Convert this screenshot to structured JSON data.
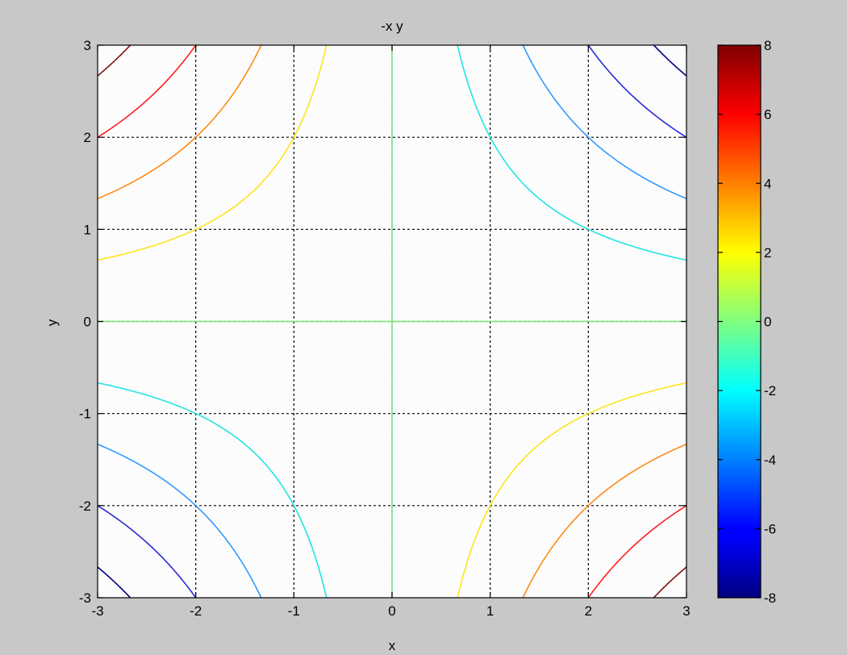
{
  "window": {
    "background": "#c8c8c8"
  },
  "chart_data": {
    "type": "contour",
    "title": "-x y",
    "xlabel": "x",
    "ylabel": "y",
    "function": "z = -x*y",
    "xlim": [
      -3,
      3
    ],
    "ylim": [
      -3,
      3
    ],
    "xticks": [
      -3,
      -2,
      -1,
      0,
      1,
      2,
      3
    ],
    "yticks": [
      -3,
      -2,
      -1,
      0,
      1,
      2,
      3
    ],
    "grid": true,
    "grid_style": "dashed",
    "contour_levels": [
      -8,
      -6,
      -4,
      -2,
      0,
      2,
      4,
      6,
      8
    ],
    "colormap": "jet",
    "colorbar": {
      "limits": [
        -8,
        8
      ],
      "ticks": [
        -8,
        -6,
        -4,
        -2,
        0,
        2,
        4,
        6,
        8
      ],
      "placement": "right"
    },
    "level_colors": {
      "-8": "#000080",
      "-6": "#2a2ad8",
      "-4": "#3399ff",
      "-2": "#22e4e4",
      "0": "#7ae87a",
      "2": "#ffe41a",
      "4": "#ff8a14",
      "6": "#ff1e1e",
      "8": "#801010"
    },
    "plot_background": "#fcfcfc"
  }
}
